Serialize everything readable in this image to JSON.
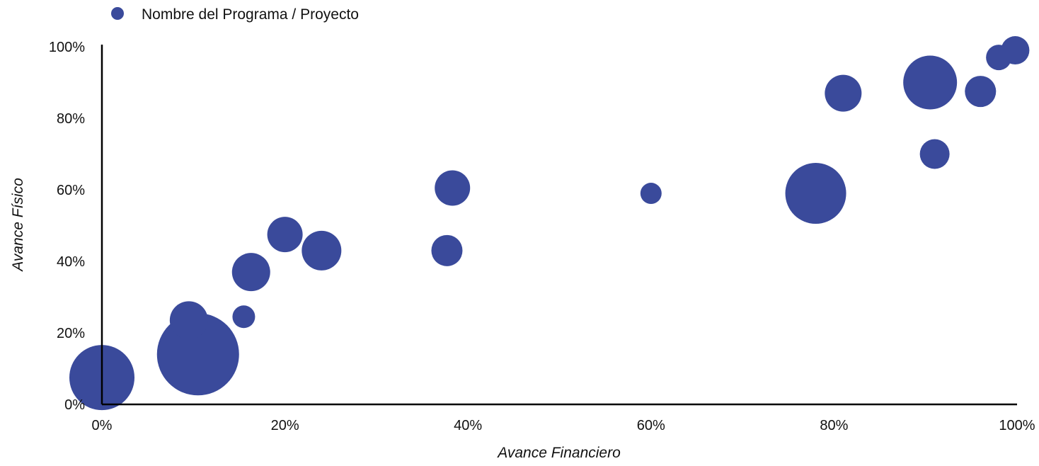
{
  "chart_data": {
    "type": "scatter",
    "subtype": "bubble",
    "xlabel": "Avance Financiero",
    "ylabel": "Avance Físico",
    "xlim": [
      0,
      1
    ],
    "ylim": [
      0,
      1
    ],
    "x_ticks": [
      "0%",
      "20%",
      "40%",
      "60%",
      "80%",
      "100%"
    ],
    "y_ticks": [
      "0%",
      "20%",
      "40%",
      "60%",
      "80%",
      "100%"
    ],
    "grid": false,
    "legend_position": "top-left",
    "series": [
      {
        "name": "Nombre del Programa / Proyecto",
        "color": "#3A4A9B",
        "points": [
          {
            "x": 0.0,
            "y": 0.075,
            "size": 46
          },
          {
            "x": 0.105,
            "y": 0.14,
            "size": 58
          },
          {
            "x": 0.095,
            "y": 0.235,
            "size": 27
          },
          {
            "x": 0.155,
            "y": 0.245,
            "size": 16
          },
          {
            "x": 0.163,
            "y": 0.37,
            "size": 27
          },
          {
            "x": 0.2,
            "y": 0.475,
            "size": 25
          },
          {
            "x": 0.24,
            "y": 0.43,
            "size": 28
          },
          {
            "x": 0.377,
            "y": 0.43,
            "size": 22
          },
          {
            "x": 0.383,
            "y": 0.605,
            "size": 25
          },
          {
            "x": 0.6,
            "y": 0.59,
            "size": 15
          },
          {
            "x": 0.78,
            "y": 0.59,
            "size": 43
          },
          {
            "x": 0.81,
            "y": 0.87,
            "size": 26
          },
          {
            "x": 0.905,
            "y": 0.9,
            "size": 38
          },
          {
            "x": 0.91,
            "y": 0.7,
            "size": 21
          },
          {
            "x": 0.96,
            "y": 0.875,
            "size": 22
          },
          {
            "x": 0.98,
            "y": 0.97,
            "size": 18
          },
          {
            "x": 0.998,
            "y": 0.99,
            "size": 20
          }
        ]
      }
    ]
  }
}
